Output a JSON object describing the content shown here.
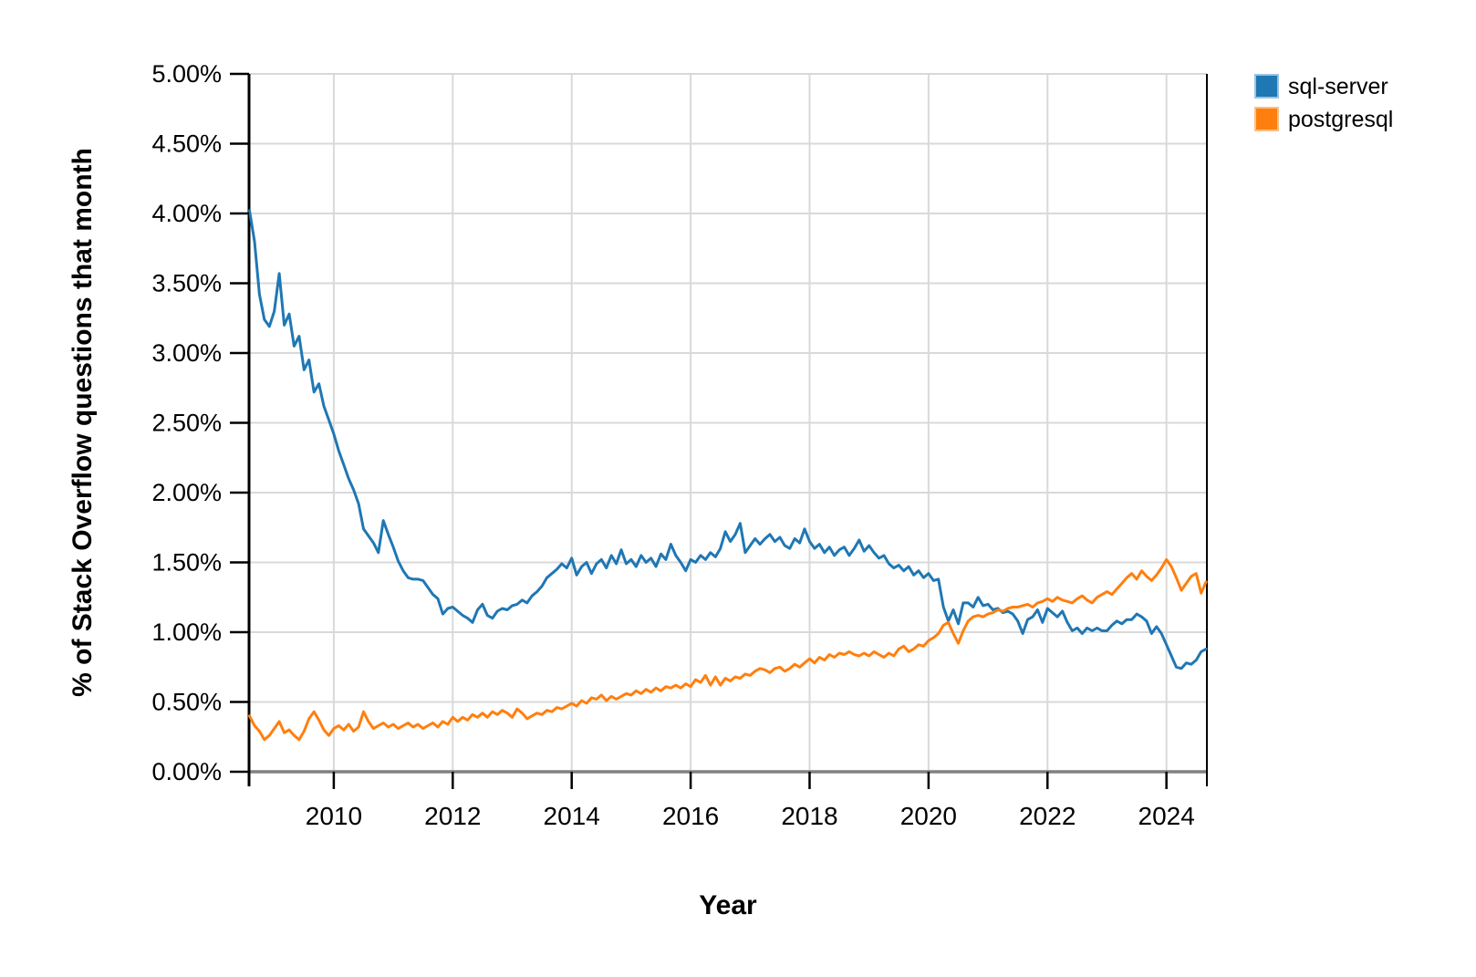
{
  "chart_data": {
    "type": "line",
    "title": "",
    "xlabel": "Year",
    "ylabel": "% of Stack Overflow questions that month",
    "x_unit": "months",
    "x_start_year": 2008.5833,
    "x_step_years": 0.0833333,
    "xlim": [
      2008.575,
      2024.68
    ],
    "ylim": [
      0,
      5
    ],
    "x_ticks": [
      2010,
      2012,
      2014,
      2016,
      2018,
      2020,
      2022,
      2024
    ],
    "y_tick_values": [
      0,
      0.5,
      1,
      1.5,
      2,
      2.5,
      3,
      3.5,
      4,
      4.5,
      5
    ],
    "y_tick_labels": [
      "0.00%",
      "0.50%",
      "1.00%",
      "1.50%",
      "2.00%",
      "2.50%",
      "3.00%",
      "3.50%",
      "4.00%",
      "4.50%",
      "5.00%"
    ],
    "grid": true,
    "grid_color": "#d9d9d9",
    "axis_line_color": "#808080",
    "spine_color": "#000000",
    "text_color": "#000000",
    "legend_position": "top-right-outside",
    "series": [
      {
        "name": "sql-server",
        "color": "#1f77b4",
        "legend_edge_color": "#9dc3de",
        "values": [
          4.02,
          3.8,
          3.42,
          3.24,
          3.19,
          3.3,
          3.57,
          3.2,
          3.28,
          3.05,
          3.12,
          2.88,
          2.95,
          2.72,
          2.78,
          2.62,
          2.52,
          2.42,
          2.3,
          2.2,
          2.1,
          2.02,
          1.92,
          1.74,
          1.69,
          1.64,
          1.57,
          1.8,
          1.7,
          1.61,
          1.51,
          1.44,
          1.39,
          1.38,
          1.38,
          1.37,
          1.32,
          1.27,
          1.24,
          1.13,
          1.17,
          1.18,
          1.15,
          1.12,
          1.1,
          1.07,
          1.16,
          1.2,
          1.12,
          1.1,
          1.15,
          1.17,
          1.16,
          1.19,
          1.2,
          1.23,
          1.21,
          1.26,
          1.29,
          1.33,
          1.39,
          1.42,
          1.45,
          1.49,
          1.46,
          1.53,
          1.41,
          1.47,
          1.5,
          1.42,
          1.49,
          1.52,
          1.46,
          1.55,
          1.49,
          1.59,
          1.49,
          1.52,
          1.47,
          1.55,
          1.5,
          1.53,
          1.47,
          1.56,
          1.52,
          1.63,
          1.55,
          1.5,
          1.44,
          1.52,
          1.5,
          1.55,
          1.52,
          1.57,
          1.54,
          1.6,
          1.72,
          1.65,
          1.7,
          1.78,
          1.57,
          1.62,
          1.67,
          1.63,
          1.67,
          1.7,
          1.65,
          1.68,
          1.62,
          1.6,
          1.67,
          1.64,
          1.74,
          1.65,
          1.6,
          1.63,
          1.57,
          1.61,
          1.55,
          1.59,
          1.61,
          1.55,
          1.6,
          1.66,
          1.58,
          1.62,
          1.57,
          1.53,
          1.55,
          1.49,
          1.46,
          1.48,
          1.44,
          1.47,
          1.41,
          1.44,
          1.39,
          1.42,
          1.37,
          1.38,
          1.18,
          1.08,
          1.16,
          1.06,
          1.21,
          1.21,
          1.18,
          1.25,
          1.19,
          1.2,
          1.16,
          1.17,
          1.14,
          1.15,
          1.13,
          1.08,
          0.99,
          1.09,
          1.11,
          1.16,
          1.07,
          1.17,
          1.14,
          1.11,
          1.15,
          1.07,
          1.01,
          1.03,
          0.99,
          1.03,
          1.01,
          1.03,
          1.01,
          1.01,
          1.05,
          1.08,
          1.06,
          1.09,
          1.09,
          1.13,
          1.11,
          1.08,
          0.99,
          1.04,
          0.99,
          0.91,
          0.83,
          0.75,
          0.74,
          0.78,
          0.77,
          0.8,
          0.86,
          0.88
        ]
      },
      {
        "name": "postgresql",
        "color": "#ff7f0e",
        "legend_edge_color": "#febf86",
        "values": [
          0.4,
          0.33,
          0.29,
          0.23,
          0.26,
          0.31,
          0.36,
          0.28,
          0.3,
          0.26,
          0.23,
          0.29,
          0.38,
          0.43,
          0.37,
          0.3,
          0.26,
          0.31,
          0.33,
          0.3,
          0.34,
          0.29,
          0.32,
          0.43,
          0.36,
          0.31,
          0.33,
          0.35,
          0.32,
          0.34,
          0.31,
          0.33,
          0.35,
          0.32,
          0.34,
          0.31,
          0.33,
          0.35,
          0.32,
          0.36,
          0.34,
          0.39,
          0.36,
          0.39,
          0.37,
          0.41,
          0.39,
          0.42,
          0.39,
          0.43,
          0.41,
          0.44,
          0.42,
          0.39,
          0.45,
          0.42,
          0.38,
          0.4,
          0.42,
          0.41,
          0.44,
          0.43,
          0.46,
          0.45,
          0.47,
          0.49,
          0.47,
          0.51,
          0.49,
          0.53,
          0.52,
          0.55,
          0.51,
          0.54,
          0.52,
          0.54,
          0.56,
          0.55,
          0.58,
          0.56,
          0.59,
          0.57,
          0.6,
          0.58,
          0.61,
          0.6,
          0.62,
          0.6,
          0.63,
          0.61,
          0.66,
          0.64,
          0.69,
          0.62,
          0.68,
          0.62,
          0.67,
          0.65,
          0.68,
          0.67,
          0.7,
          0.69,
          0.72,
          0.74,
          0.73,
          0.71,
          0.74,
          0.75,
          0.72,
          0.74,
          0.77,
          0.75,
          0.78,
          0.81,
          0.78,
          0.82,
          0.8,
          0.84,
          0.82,
          0.85,
          0.84,
          0.86,
          0.84,
          0.83,
          0.85,
          0.83,
          0.86,
          0.84,
          0.82,
          0.85,
          0.83,
          0.88,
          0.9,
          0.86,
          0.88,
          0.91,
          0.9,
          0.94,
          0.96,
          0.99,
          1.05,
          1.07,
          0.99,
          0.92,
          1.01,
          1.08,
          1.11,
          1.12,
          1.11,
          1.13,
          1.14,
          1.16,
          1.15,
          1.17,
          1.18,
          1.18,
          1.19,
          1.2,
          1.18,
          1.21,
          1.22,
          1.24,
          1.22,
          1.25,
          1.23,
          1.22,
          1.21,
          1.24,
          1.26,
          1.23,
          1.21,
          1.25,
          1.27,
          1.29,
          1.27,
          1.31,
          1.35,
          1.39,
          1.42,
          1.38,
          1.44,
          1.4,
          1.37,
          1.41,
          1.46,
          1.52,
          1.47,
          1.39,
          1.3,
          1.35,
          1.4,
          1.42,
          1.28,
          1.36
        ]
      }
    ]
  }
}
